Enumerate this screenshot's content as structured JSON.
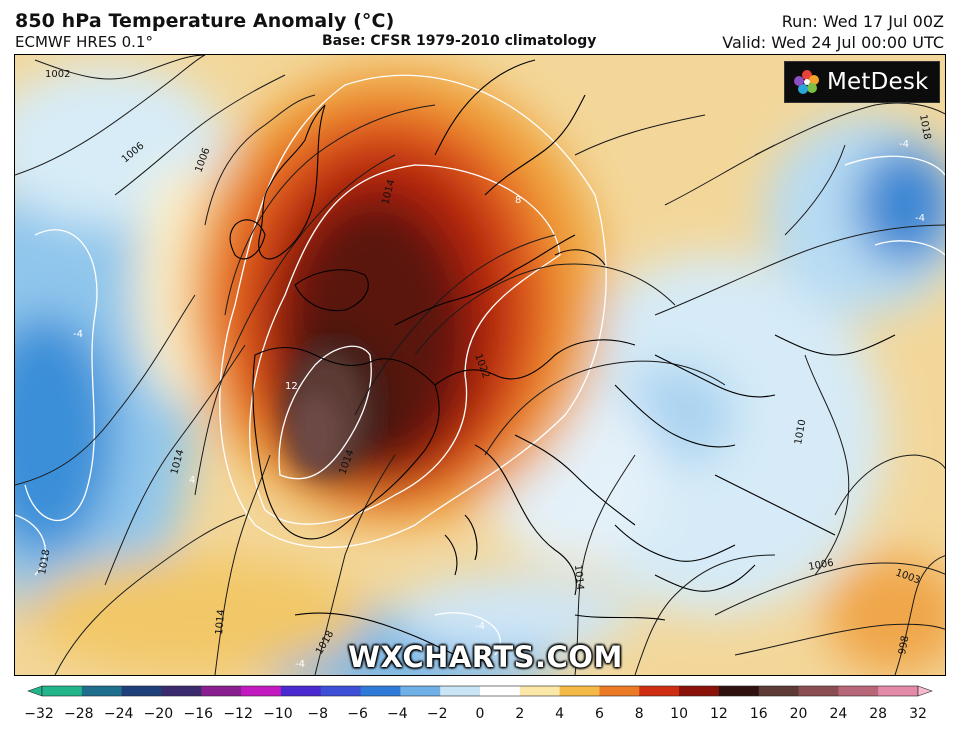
{
  "header": {
    "title": "850 hPa Temperature Anomaly (°C)",
    "model": "ECMWF HRES 0.1°",
    "base": "Base: CFSR 1979-2010 climatology",
    "run": "Run: Wed 17 Jul 00Z",
    "valid": "Valid: Wed 24 Jul 00:00 UTC"
  },
  "logo": {
    "text": "MetDesk",
    "icon": "metdesk-logo-icon"
  },
  "watermark": "WXCHARTS.COM",
  "colorbar": {
    "ticks": [
      "−32",
      "−28",
      "−24",
      "−20",
      "−16",
      "−12",
      "−10",
      "−8",
      "−6",
      "−4",
      "−2",
      "0",
      "2",
      "4",
      "6",
      "8",
      "10",
      "12",
      "16",
      "20",
      "24",
      "28",
      "32"
    ],
    "colors": [
      "#22b48a",
      "#1e6f8e",
      "#1e3f7a",
      "#3a2a6e",
      "#8a1f8f",
      "#c21ac0",
      "#4a2ad0",
      "#3d4fd6",
      "#2f7ad9",
      "#6fb0e6",
      "#c9e4f5",
      "#ffffff",
      "#fbe7a8",
      "#f5b946",
      "#ec7a24",
      "#cf2d12",
      "#8a1209",
      "#2f1210",
      "#5c3a36",
      "#8a4e52",
      "#b76777",
      "#e28aa8",
      "#f4b8cf"
    ]
  },
  "map": {
    "isobar_labels": [
      "1002",
      "1006",
      "1006",
      "1014",
      "1014",
      "1018",
      "1014",
      "1014",
      "1018",
      "1022",
      "1014",
      "1010",
      "1006",
      "1003",
      "998",
      "1018"
    ],
    "anomaly_labels": [
      "-4",
      "-4",
      "-4",
      "-4",
      "4",
      "8",
      "12",
      "-4"
    ]
  }
}
